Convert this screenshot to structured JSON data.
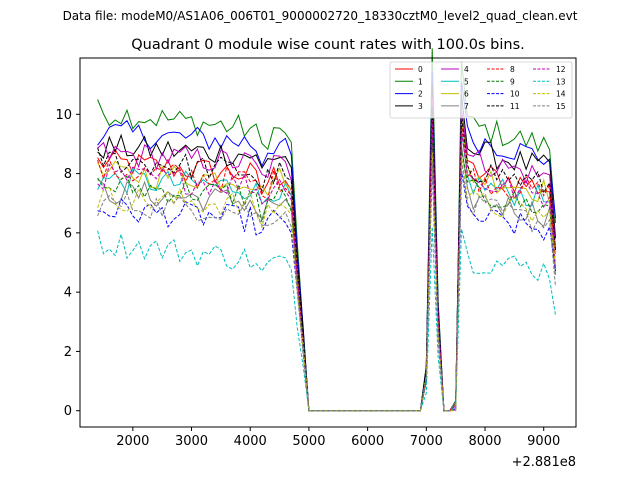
{
  "chart_data": {
    "type": "line",
    "suptitle": "Data file: modeM0/AS1A06_006T01_9000002720_18330cztM0_level2_quad_clean.evt",
    "title": "Quadrant 0 module wise count rates with 100.0s bins.",
    "xlabel": "",
    "ylabel": "",
    "x_offset_label": "+2.881e8",
    "xlim": [
      1100,
      9550
    ],
    "ylim": [
      -0.55,
      11.9
    ],
    "x_ticks": [
      2000,
      3000,
      4000,
      5000,
      6000,
      7000,
      8000,
      9000
    ],
    "x_tick_labels": [
      "2000",
      "3000",
      "4000",
      "5000",
      "6000",
      "7000",
      "8000",
      "9000"
    ],
    "y_ticks": [
      0,
      2,
      4,
      6,
      8,
      10
    ],
    "y_tick_labels": [
      "0",
      "2",
      "4",
      "6",
      "8",
      "10"
    ],
    "grid": false,
    "legend_placement": "top-right",
    "gap_profile": {
      "x": [
        4600,
        4700,
        4800,
        4900,
        5000,
        6900,
        7000,
        7100,
        7200,
        7300,
        7400,
        7500,
        7600,
        7700
      ],
      "fraction_of_level": [
        1.0,
        0.95,
        0.6,
        0.3,
        0.0,
        0.0,
        0.15,
        1.28,
        0.4,
        0.0,
        0.0,
        0.02,
        1.25,
        1.05
      ]
    },
    "series": [
      {
        "name": "0",
        "color": "#ff0000",
        "dashed": false,
        "level_start": 8.4,
        "level_end": 7.9
      },
      {
        "name": "1",
        "color": "#008000",
        "dashed": false,
        "level_start": 10.1,
        "level_end": 9.4
      },
      {
        "name": "2",
        "color": "#0000ff",
        "dashed": false,
        "level_start": 9.4,
        "level_end": 9.0
      },
      {
        "name": "3",
        "color": "#000000",
        "dashed": false,
        "level_start": 8.9,
        "level_end": 8.6
      },
      {
        "name": "4",
        "color": "#bf00bf",
        "dashed": false,
        "level_start": 8.7,
        "level_end": 8.3
      },
      {
        "name": "5",
        "color": "#00bfbf",
        "dashed": false,
        "level_start": 7.8,
        "level_end": 7.5
      },
      {
        "name": "6",
        "color": "#bfbf00",
        "dashed": false,
        "level_start": 8.0,
        "level_end": 7.8
      },
      {
        "name": "7",
        "color": "#808080",
        "dashed": false,
        "level_start": 7.4,
        "level_end": 7.0
      },
      {
        "name": "8",
        "color": "#ff0000",
        "dashed": true,
        "level_start": 8.1,
        "level_end": 7.7
      },
      {
        "name": "9",
        "color": "#008000",
        "dashed": true,
        "level_start": 7.6,
        "level_end": 7.2
      },
      {
        "name": "10",
        "color": "#0000ff",
        "dashed": true,
        "level_start": 6.8,
        "level_end": 6.4
      },
      {
        "name": "11",
        "color": "#000000",
        "dashed": true,
        "level_start": 8.5,
        "level_end": 8.0
      },
      {
        "name": "12",
        "color": "#bf00bf",
        "dashed": true,
        "level_start": 7.9,
        "level_end": 7.6
      },
      {
        "name": "13",
        "color": "#00bfbf",
        "dashed": true,
        "level_start": 5.7,
        "level_end": 5.0
      },
      {
        "name": "14",
        "color": "#bfbf00",
        "dashed": true,
        "level_start": 7.2,
        "level_end": 6.9
      },
      {
        "name": "15",
        "color": "#808080",
        "dashed": true,
        "level_start": 7.0,
        "level_end": 6.7
      }
    ]
  }
}
